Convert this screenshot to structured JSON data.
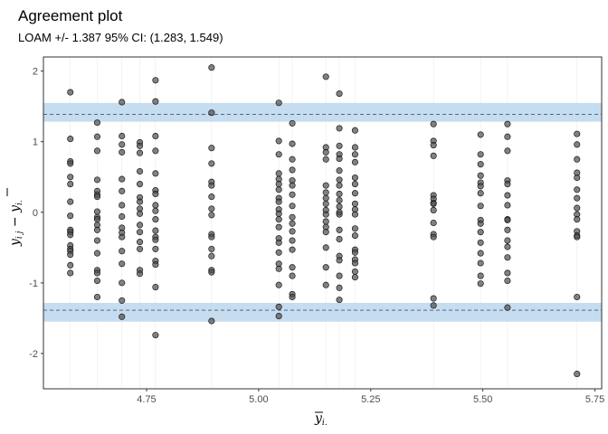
{
  "chart_data": {
    "type": "scatter",
    "title": "Agreement plot",
    "subtitle": "LOAM +/- 1.387   95% CI: (1.283, 1.549)",
    "xlabel": "y",
    "xlabel_sub": "i.",
    "ylabel": "y",
    "ylabel_sub_left": "i j",
    "ylabel_mid": " − ",
    "ylabel_sub_right": "i.",
    "xlim": [
      4.52,
      5.765
    ],
    "ylim": [
      -2.5,
      2.2
    ],
    "x_ticks": [
      4.75,
      5.0,
      5.25,
      5.5,
      5.75
    ],
    "x_tick_labels": [
      "4.75",
      "5.00",
      "5.25",
      "5.50",
      "5.75"
    ],
    "y_ticks": [
      -2,
      -1,
      0,
      1,
      2
    ],
    "y_tick_labels": [
      "-2",
      "-1",
      "0",
      "1",
      "2"
    ],
    "loam": 1.387,
    "ci": [
      1.283,
      1.549
    ],
    "grid": true,
    "colors": {
      "band": "#c6dcef",
      "line": "#3b5d7a",
      "point_fill": "#4d4d4d",
      "point_stroke": "#1a1a1a",
      "grid": "#ebebeb",
      "panel_border": "#333333"
    },
    "columns": [
      {
        "x": 4.58,
        "y": [
          1.7,
          1.04,
          0.72,
          0.69,
          0.5,
          0.4,
          0.15,
          -0.05,
          -0.25,
          -0.28,
          -0.32,
          -0.47,
          -0.52,
          -0.55,
          -0.6,
          -0.75,
          -0.86
        ]
      },
      {
        "x": 4.64,
        "y": [
          1.27,
          1.07,
          0.87,
          0.46,
          0.3,
          0.25,
          0.22,
          0.01,
          -0.07,
          -0.1,
          -0.18,
          -0.25,
          -0.4,
          -0.58,
          -0.82,
          -0.86,
          -0.97,
          -1.2
        ]
      },
      {
        "x": 4.695,
        "y": [
          1.56,
          1.08,
          0.96,
          0.85,
          0.47,
          0.3,
          0.1,
          -0.06,
          -0.22,
          -0.29,
          -0.35,
          -0.55,
          -0.73,
          -1.0,
          -1.25,
          -1.48
        ]
      },
      {
        "x": 4.735,
        "y": [
          0.99,
          0.94,
          0.84,
          0.58,
          0.4,
          0.21,
          0.15,
          0.05,
          -0.02,
          -0.18,
          -0.28,
          -0.42,
          -0.52,
          -0.82,
          -0.87
        ]
      },
      {
        "x": 4.77,
        "y": [
          1.87,
          1.57,
          1.08,
          0.87,
          0.55,
          0.31,
          0.26,
          0.1,
          0.02,
          -0.1,
          -0.26,
          -0.35,
          -0.39,
          -0.52,
          -0.69,
          -0.74,
          -1.06,
          -1.74
        ]
      },
      {
        "x": 4.895,
        "y": [
          2.05,
          1.41,
          0.91,
          0.69,
          0.43,
          0.38,
          0.22,
          0.05,
          -0.04,
          -0.31,
          -0.35,
          -0.52,
          -0.62,
          -0.82,
          -0.85,
          -1.54
        ]
      },
      {
        "x": 5.045,
        "y": [
          1.55,
          1.01,
          0.82,
          0.55,
          0.47,
          0.4,
          0.32,
          0.2,
          0.15,
          0.04,
          -0.02,
          -0.1,
          -0.21,
          -0.37,
          -0.43,
          -0.57,
          -0.73,
          -0.8,
          -1.03,
          -1.34,
          -1.47
        ]
      },
      {
        "x": 5.075,
        "y": [
          1.26,
          0.97,
          0.75,
          0.6,
          0.45,
          0.38,
          0.25,
          0.09,
          -0.07,
          -0.16,
          -0.27,
          -0.4,
          -0.53,
          -0.78,
          -0.9,
          -1.16,
          -1.2
        ]
      },
      {
        "x": 5.15,
        "y": [
          1.92,
          0.92,
          0.85,
          0.75,
          0.38,
          0.28,
          0.2,
          0.12,
          0.03,
          -0.03,
          -0.13,
          -0.21,
          -0.28,
          -0.5,
          -0.78,
          -1.03
        ]
      },
      {
        "x": 5.18,
        "y": [
          1.68,
          1.19,
          0.94,
          0.82,
          0.76,
          0.59,
          0.46,
          0.38,
          0.26,
          0.17,
          0.08,
          0.0,
          -0.03,
          -0.25,
          -0.38,
          -0.62,
          -0.68,
          -0.9,
          -1.07,
          -1.24
        ]
      },
      {
        "x": 5.215,
        "y": [
          1.16,
          0.92,
          0.82,
          0.71,
          0.49,
          0.4,
          0.27,
          0.12,
          0.04,
          -0.03,
          -0.23,
          -0.33,
          -0.53,
          -0.57,
          -0.67,
          -0.72,
          -0.84,
          -0.92
        ]
      },
      {
        "x": 5.39,
        "y": [
          1.25,
          1.01,
          0.95,
          0.8,
          0.24,
          0.19,
          0.13,
          0.12,
          0.03,
          -0.15,
          -0.31,
          -0.35,
          -1.22,
          -1.32
        ]
      },
      {
        "x": 5.495,
        "y": [
          1.1,
          0.82,
          0.68,
          0.52,
          0.42,
          0.37,
          0.27,
          0.09,
          -0.11,
          -0.16,
          -0.28,
          -0.43,
          -0.58,
          -0.72,
          -0.9,
          -1.01
        ]
      },
      {
        "x": 5.555,
        "y": [
          1.25,
          1.07,
          0.87,
          0.45,
          0.4,
          0.24,
          0.1,
          -0.1,
          -0.11,
          -0.25,
          -0.4,
          -0.49,
          -0.64,
          -0.86,
          -0.97,
          -1.35
        ]
      },
      {
        "x": 5.71,
        "y": [
          1.11,
          0.96,
          0.75,
          0.56,
          0.49,
          0.32,
          0.2,
          0.06,
          -0.03,
          -0.1,
          -0.27,
          -0.33,
          -0.35,
          -1.2,
          -2.29
        ]
      }
    ]
  }
}
